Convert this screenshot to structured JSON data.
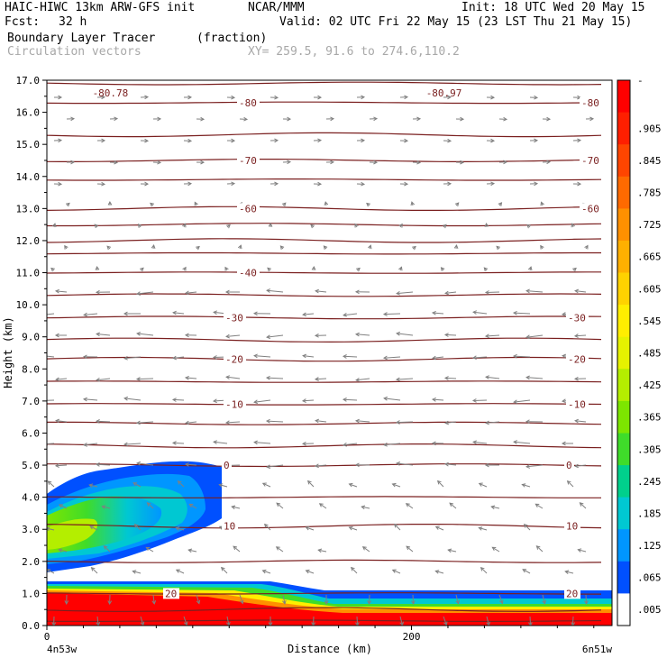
{
  "header": {
    "model": "HAIC-HIWC 13km ARW-GFS init",
    "org": "NCAR/MMM",
    "init": "Init: 18 UTC Wed 20 May 15",
    "fcst_label": "Fcst:",
    "fcst_value": "32 h",
    "valid": "Valid: 02 UTC Fri 22 May 15 (23 LST Thu 21 May 15)",
    "field_name": "Boundary Layer Tracer",
    "field_units": "(fraction)",
    "overlay_name": "Circulation vectors",
    "xy": "XY= 259.5, 91.6 to 274.6,110.2"
  },
  "chart_data": {
    "type": "heatmap",
    "title": "Boundary Layer Tracer",
    "ylabel": "Height (km)",
    "xlabel": "Distance (km)",
    "x_left_label": "4n53w",
    "x_right_label": "6n51w",
    "x_ticks": [
      0,
      200
    ],
    "xlim": [
      0,
      310
    ],
    "ylim": [
      0,
      17
    ],
    "y_ticks": [
      "0.0",
      "1.0",
      "2.0",
      "3.0",
      "4.0",
      "5.0",
      "6.0",
      "7.0",
      "8.0",
      "9.0",
      "10.0",
      "11.0",
      "12.0",
      "13.0",
      "14.0",
      "15.0",
      "16.0",
      "17.0"
    ],
    "colorbar_levels": [
      "-",
      ".905",
      ".845",
      ".785",
      ".725",
      ".665",
      ".605",
      ".545",
      ".485",
      ".425",
      ".365",
      ".305",
      ".245",
      ".185",
      ".125",
      ".065",
      ".005"
    ],
    "colorbar_colors": [
      "#ff0000",
      "#ff1f00",
      "#ff4500",
      "#ff6a00",
      "#ff9000",
      "#ffb000",
      "#ffd200",
      "#ffee00",
      "#e6f200",
      "#b4ee00",
      "#7de600",
      "#3fdc2a",
      "#00d08c",
      "#00c8d2",
      "#0096ff",
      "#0050ff",
      "#ffffff"
    ],
    "temperature_contours": [
      {
        "height": 16.3,
        "label": "-80",
        "label_x": [
          265,
          645
        ]
      },
      {
        "height": 14.5,
        "label": "-70",
        "label_x": [
          265,
          645
        ]
      },
      {
        "height": 13.0,
        "label": "-60",
        "label_x": [
          265,
          645
        ]
      },
      {
        "height": 11.0,
        "label": "-40",
        "label_x": [
          265
        ]
      },
      {
        "height": 9.6,
        "label": "-30",
        "label_x": [
          250,
          630
        ]
      },
      {
        "height": 8.3,
        "label": "-20",
        "label_x": [
          250,
          630
        ]
      },
      {
        "height": 6.9,
        "label": "-10",
        "label_x": [
          250,
          630
        ]
      },
      {
        "height": 5.0,
        "label": "0",
        "label_x": [
          248,
          628
        ]
      },
      {
        "height": 3.1,
        "label": "10",
        "label_x": [
          248,
          628
        ]
      },
      {
        "height": 1.0,
        "label": "20",
        "label_x": [
          183,
          628
        ]
      }
    ],
    "contour_extra_labels": [
      {
        "text": "-80.78",
        "x_km": 25,
        "height": 16.6
      },
      {
        "text": "-80.97",
        "x_km": 208,
        "height": 16.6
      }
    ],
    "contour_heights_unlabeled": [
      16.9,
      15.3,
      13.9,
      12.5,
      12.0,
      11.6,
      10.3,
      8.9,
      7.6,
      6.3,
      5.6,
      4.0,
      2.0,
      0.5,
      0.15
    ],
    "vector_color": "#808080",
    "contour_color": "#7a1f1f"
  }
}
